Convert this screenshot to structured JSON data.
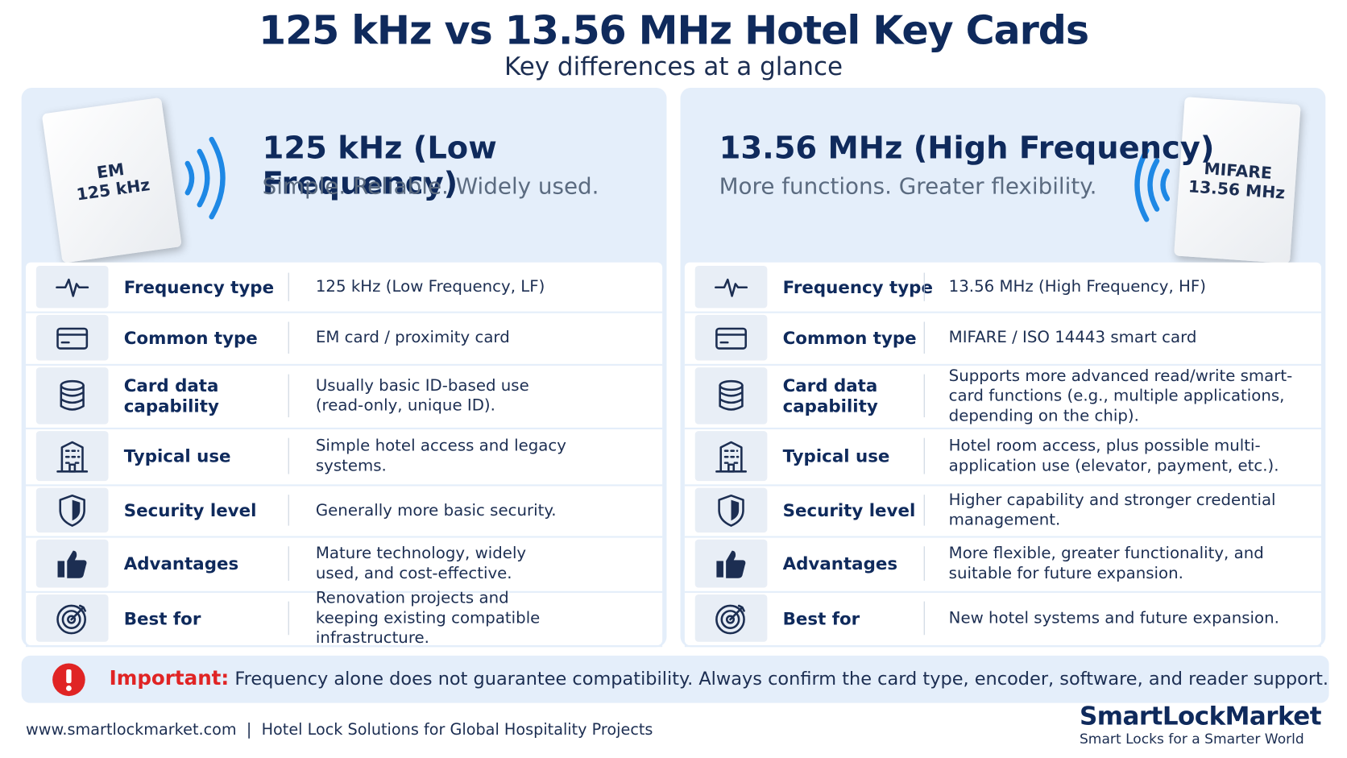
{
  "header": {
    "title": "125 kHz vs 13.56 MHz Hotel Key Cards",
    "subtitle": "Key differences at a glance"
  },
  "panels": [
    {
      "title": "125 kHz (Low Frequency)",
      "tagline": "Simple. Reliable. Widely used.",
      "card_label": [
        "EM",
        "125 kHz"
      ],
      "rows": [
        {
          "label": "Frequency type",
          "value": "125 kHz (Low Frequency, LF)"
        },
        {
          "label": "Common type",
          "value": "EM card / proximity card"
        },
        {
          "label": "Card data capability",
          "value": "Usually basic ID-based use (read-only, unique ID)."
        },
        {
          "label": "Typical use",
          "value": "Simple hotel access and legacy systems."
        },
        {
          "label": "Security level",
          "value": "Generally more basic security."
        },
        {
          "label": "Advantages",
          "value": "Mature technology, widely used, and cost-effective."
        },
        {
          "label": "Best for",
          "value": "Renovation projects and keeping existing compatible infrastructure."
        }
      ]
    },
    {
      "title": "13.56 MHz (High Frequency)",
      "tagline": "More functions. Greater flexibility.",
      "card_label": [
        "MIFARE",
        "13.56 MHz"
      ],
      "rows": [
        {
          "label": "Frequency type",
          "value": "13.56 MHz (High Frequency, HF)"
        },
        {
          "label": "Common type",
          "value": "MIFARE / ISO 14443 smart card"
        },
        {
          "label": "Card data capability",
          "value": "Supports more advanced read/write smart-card functions (e.g., multiple applications, depending on the chip)."
        },
        {
          "label": "Typical use",
          "value": "Hotel room access, plus possible multi-application use (elevator, payment, etc.)."
        },
        {
          "label": "Security level",
          "value": "Higher capability and stronger credential management."
        },
        {
          "label": "Advantages",
          "value": "More flexible, greater functionality, and suitable for future expansion."
        },
        {
          "label": "Best for",
          "value": "New hotel systems and future expansion."
        }
      ]
    }
  ],
  "important": {
    "label": "Important:",
    "text": "Frequency alone does not guarantee compatibility. Always confirm the card type, encoder, software, and reader support."
  },
  "footer": {
    "url": "www.smartlockmarket.com",
    "separator": "|",
    "tagline": "Hotel Lock Solutions for Global Hospitality Projects"
  },
  "brand": {
    "name": "SmartLockMarket",
    "tagline": "Smart Locks for a Smarter World"
  }
}
